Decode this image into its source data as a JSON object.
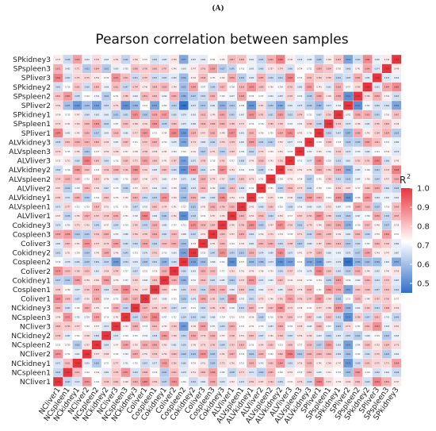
{
  "panel_label": "(A)",
  "chart_data": {
    "type": "heatmap",
    "title": "Pearson correlation between samples",
    "samples": [
      "NCliver1",
      "NCspleen1",
      "NCkidney1",
      "NCliver2",
      "NCspleen2",
      "NCkidney2",
      "NCliver3",
      "NCspleen3",
      "NCkidney3",
      "Coliver1",
      "Cospleen1",
      "Cokidney1",
      "Coliver2",
      "Cospleen2",
      "Cokidney2",
      "Coliver3",
      "Cospleen3",
      "Cokidney3",
      "ALVliver1",
      "ALVspleen1",
      "ALVkidney1",
      "ALVliver2",
      "ALVspleen2",
      "ALVkidney2",
      "ALVliver3",
      "ALVspleen3",
      "ALVkidney3",
      "SPliver1",
      "SPspleen1",
      "SPkidney1",
      "SPliver2",
      "SPspleen2",
      "SPkidney2",
      "SPliver3",
      "SPspleen3",
      "SPkidney3"
    ],
    "legend": {
      "title": "R",
      "title_superscript": "2",
      "ticks": [
        "1.0",
        "0.9",
        "0.8",
        "0.7",
        "0.6",
        "0.5"
      ],
      "range": [
        0.45,
        1.0
      ],
      "colors": {
        "low": "#2f6fc9",
        "mid": "#ffffff",
        "high": "#e8353d",
        "mid_value": 0.72
      }
    },
    "values_note": "cell values are squared Pearson correlations; diagonal = 1.0; Cospleen2 and SPliver2 rows show lowest values (~0.45-0.55)"
  }
}
